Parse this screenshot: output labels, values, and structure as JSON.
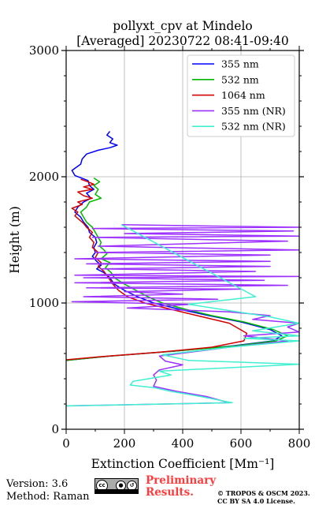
{
  "title_line1": "pollyxt_cpv at Mindelo",
  "title_line2": "[Averaged] 20230722 08:41-09:40",
  "footer": {
    "version": "Version: 3.6",
    "method": "Method: Raman",
    "preliminary_line1": "Preliminary",
    "preliminary_line2": "Results.",
    "copyright_line1": "© TROPOS & OSCM 2023.",
    "copyright_line2": "CC BY SA 4.0 License.",
    "license_badge": [
      "cc",
      "by",
      "sa"
    ]
  },
  "chart_data": {
    "type": "line",
    "orientation": "profile",
    "xlabel": "Extinction Coefficient [Mm⁻¹]",
    "ylabel": "Height (m)",
    "xlim": [
      0,
      800
    ],
    "ylim": [
      0,
      3000
    ],
    "xticks": [
      0,
      200,
      400,
      600,
      800
    ],
    "yticks": [
      0,
      1000,
      2000,
      3000
    ],
    "grid": true,
    "legend_position": "top-right",
    "series": [
      {
        "name": "355 nm",
        "color": "#0000ff",
        "points": [
          [
            150,
            2360
          ],
          [
            140,
            2330
          ],
          [
            160,
            2300
          ],
          [
            150,
            2270
          ],
          [
            175,
            2250
          ],
          [
            150,
            2230
          ],
          [
            110,
            2210
          ],
          [
            70,
            2180
          ],
          [
            55,
            2140
          ],
          [
            50,
            2100
          ],
          [
            20,
            2050
          ],
          [
            30,
            2010
          ],
          [
            75,
            1970
          ],
          [
            80,
            1930
          ],
          [
            95,
            1900
          ],
          [
            70,
            1870
          ],
          [
            85,
            1830
          ],
          [
            60,
            1800
          ],
          [
            40,
            1760
          ],
          [
            30,
            1720
          ],
          [
            50,
            1680
          ],
          [
            60,
            1640
          ],
          [
            75,
            1600
          ],
          [
            80,
            1560
          ],
          [
            100,
            1520
          ],
          [
            105,
            1480
          ],
          [
            95,
            1440
          ],
          [
            100,
            1400
          ],
          [
            90,
            1370
          ],
          [
            105,
            1330
          ],
          [
            120,
            1300
          ],
          [
            105,
            1270
          ],
          [
            130,
            1240
          ],
          [
            150,
            1200
          ],
          [
            165,
            1150
          ],
          [
            200,
            1100
          ],
          [
            245,
            1050
          ],
          [
            300,
            1000
          ],
          [
            390,
            950
          ],
          [
            490,
            900
          ],
          [
            600,
            850
          ],
          [
            700,
            790
          ],
          [
            740,
            740
          ],
          [
            710,
            700
          ],
          [
            570,
            660
          ],
          [
            380,
            620
          ],
          [
            150,
            580
          ],
          [
            0,
            545
          ]
        ]
      },
      {
        "name": "532 nm",
        "color": "#00b800",
        "points": [
          [
            95,
            1990
          ],
          [
            115,
            1960
          ],
          [
            95,
            1930
          ],
          [
            110,
            1900
          ],
          [
            100,
            1860
          ],
          [
            120,
            1830
          ],
          [
            80,
            1800
          ],
          [
            70,
            1760
          ],
          [
            50,
            1720
          ],
          [
            60,
            1680
          ],
          [
            70,
            1640
          ],
          [
            90,
            1600
          ],
          [
            100,
            1560
          ],
          [
            110,
            1520
          ],
          [
            120,
            1480
          ],
          [
            115,
            1450
          ],
          [
            130,
            1420
          ],
          [
            140,
            1390
          ],
          [
            120,
            1350
          ],
          [
            150,
            1320
          ],
          [
            135,
            1280
          ],
          [
            155,
            1240
          ],
          [
            165,
            1200
          ],
          [
            200,
            1150
          ],
          [
            240,
            1100
          ],
          [
            280,
            1050
          ],
          [
            330,
            1000
          ],
          [
            410,
            950
          ],
          [
            500,
            900
          ],
          [
            610,
            850
          ],
          [
            710,
            790
          ],
          [
            760,
            740
          ],
          [
            720,
            700
          ],
          [
            580,
            660
          ],
          [
            380,
            620
          ],
          [
            150,
            580
          ],
          [
            0,
            545
          ]
        ]
      },
      {
        "name": "1064 nm",
        "color": "#d40000",
        "points": [
          [
            50,
            1980
          ],
          [
            75,
            1960
          ],
          [
            95,
            1940
          ],
          [
            60,
            1920
          ],
          [
            90,
            1900
          ],
          [
            40,
            1880
          ],
          [
            60,
            1850
          ],
          [
            90,
            1830
          ],
          [
            40,
            1800
          ],
          [
            55,
            1780
          ],
          [
            20,
            1750
          ],
          [
            40,
            1720
          ],
          [
            30,
            1690
          ],
          [
            45,
            1660
          ],
          [
            60,
            1630
          ],
          [
            70,
            1600
          ],
          [
            90,
            1560
          ],
          [
            80,
            1520
          ],
          [
            95,
            1480
          ],
          [
            90,
            1440
          ],
          [
            110,
            1400
          ],
          [
            100,
            1360
          ],
          [
            120,
            1320
          ],
          [
            110,
            1290
          ],
          [
            130,
            1250
          ],
          [
            145,
            1200
          ],
          [
            160,
            1150
          ],
          [
            180,
            1100
          ],
          [
            210,
            1050
          ],
          [
            270,
            1000
          ],
          [
            360,
            950
          ],
          [
            450,
            900
          ],
          [
            560,
            840
          ],
          [
            620,
            760
          ],
          [
            610,
            700
          ],
          [
            500,
            650
          ],
          [
            320,
            610
          ],
          [
            120,
            575
          ],
          [
            0,
            550
          ]
        ]
      },
      {
        "name": "355 nm (NR)",
        "color": "#9b30ff",
        "points": [
          [
            190,
            1620
          ],
          [
            800,
            1600
          ],
          [
            90,
            1590
          ],
          [
            780,
            1570
          ],
          [
            200,
            1550
          ],
          [
            800,
            1530
          ],
          [
            90,
            1520
          ],
          [
            760,
            1490
          ],
          [
            110,
            1450
          ],
          [
            800,
            1420
          ],
          [
            100,
            1400
          ],
          [
            700,
            1380
          ],
          [
            30,
            1350
          ],
          [
            700,
            1330
          ],
          [
            70,
            1310
          ],
          [
            700,
            1290
          ],
          [
            120,
            1270
          ],
          [
            650,
            1250
          ],
          [
            30,
            1220
          ],
          [
            800,
            1210
          ],
          [
            60,
            1200
          ],
          [
            680,
            1180
          ],
          [
            30,
            1160
          ],
          [
            760,
            1140
          ],
          [
            70,
            1120
          ],
          [
            600,
            1110
          ],
          [
            200,
            1090
          ],
          [
            400,
            1070
          ],
          [
            60,
            1050
          ],
          [
            520,
            1030
          ],
          [
            20,
            1010
          ],
          [
            430,
            990
          ],
          [
            210,
            960
          ],
          [
            560,
            930
          ],
          [
            700,
            900
          ],
          [
            640,
            870
          ],
          [
            800,
            840
          ],
          [
            760,
            810
          ],
          [
            800,
            770
          ],
          [
            610,
            740
          ],
          [
            760,
            700
          ],
          [
            560,
            650
          ],
          [
            320,
            580
          ],
          [
            340,
            540
          ],
          [
            400,
            510
          ],
          [
            320,
            470
          ],
          [
            300,
            430
          ],
          [
            310,
            390
          ],
          [
            300,
            340
          ],
          [
            380,
            300
          ],
          [
            480,
            260
          ],
          [
            560,
            210
          ],
          [
            0,
            185
          ]
        ]
      },
      {
        "name": "532 nm (NR)",
        "color": "#40f0d0",
        "points": [
          [
            190,
            1620
          ],
          [
            650,
            1050
          ],
          [
            420,
            990
          ],
          [
            560,
            940
          ],
          [
            700,
            890
          ],
          [
            800,
            840
          ],
          [
            640,
            780
          ],
          [
            800,
            740
          ],
          [
            610,
            720
          ],
          [
            800,
            700
          ],
          [
            560,
            650
          ],
          [
            330,
            590
          ],
          [
            420,
            545
          ],
          [
            800,
            515
          ],
          [
            320,
            460
          ],
          [
            360,
            430
          ],
          [
            230,
            380
          ],
          [
            220,
            350
          ],
          [
            300,
            330
          ],
          [
            360,
            300
          ],
          [
            460,
            260
          ],
          [
            570,
            210
          ],
          [
            0,
            185
          ]
        ]
      }
    ]
  }
}
